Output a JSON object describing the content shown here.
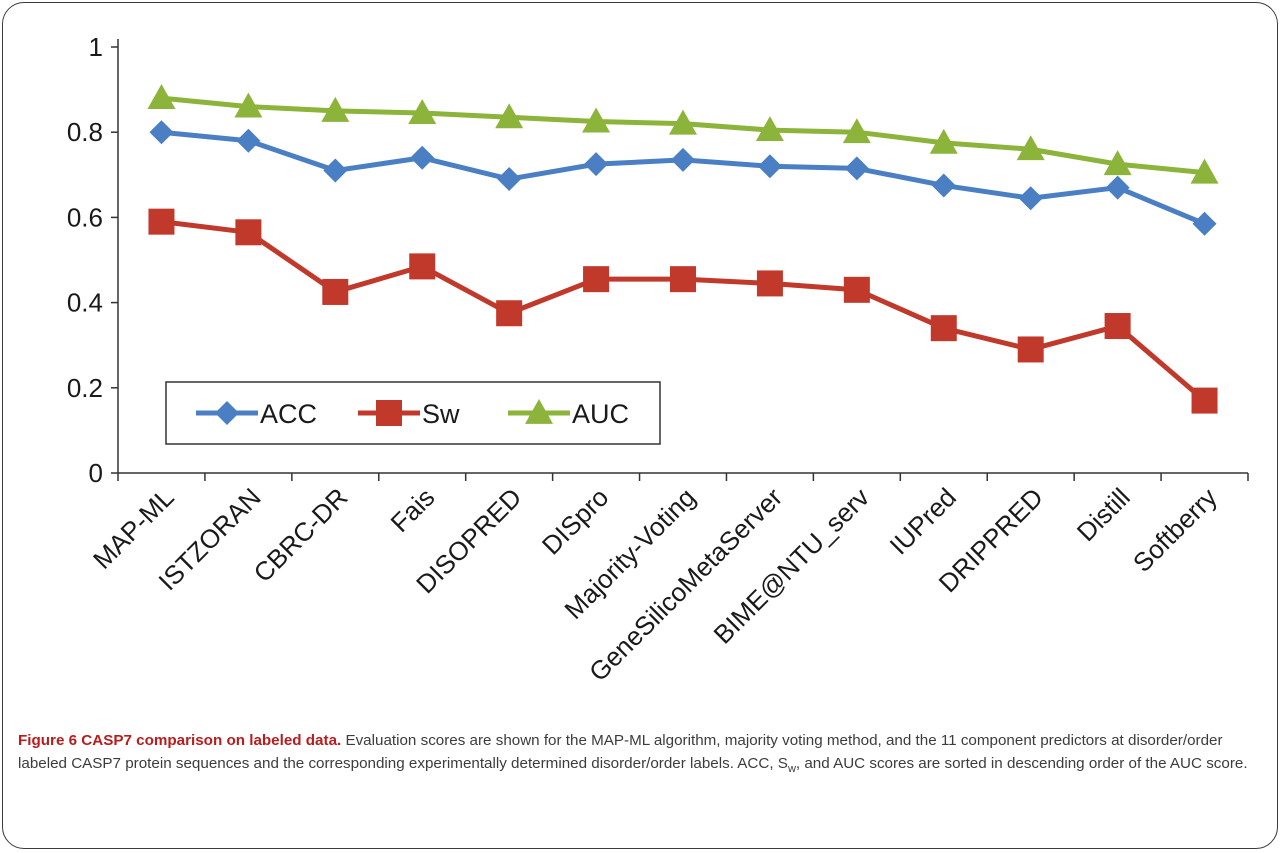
{
  "chart_data": {
    "type": "line",
    "categories": [
      "MAP-ML",
      "ISTZORAN",
      "CBRC-DR",
      "Fais",
      "DISOPRED",
      "DISpro",
      "Majority-Voting",
      "GeneSilicoMetaServer",
      "BIME@NTU_serv",
      "IUPred",
      "DRIPPRED",
      "Distill",
      "Softberry"
    ],
    "series": [
      {
        "name": "ACC",
        "color": "#4a7fc4",
        "marker": "diamond",
        "values": [
          0.8,
          0.78,
          0.71,
          0.74,
          0.69,
          0.725,
          0.735,
          0.72,
          0.715,
          0.675,
          0.645,
          0.67,
          0.585
        ]
      },
      {
        "name": "Sw",
        "color": "#c0392b",
        "marker": "square",
        "values": [
          0.59,
          0.565,
          0.425,
          0.485,
          0.375,
          0.455,
          0.455,
          0.445,
          0.43,
          0.34,
          0.29,
          0.345,
          0.17
        ]
      },
      {
        "name": "AUC",
        "color": "#8cb33a",
        "marker": "triangle",
        "values": [
          0.88,
          0.86,
          0.85,
          0.845,
          0.835,
          0.825,
          0.82,
          0.805,
          0.8,
          0.775,
          0.76,
          0.725,
          0.705
        ]
      }
    ],
    "yticks": [
      "0",
      "0.2",
      "0.4",
      "0.6",
      "0.8",
      "1"
    ],
    "ylim": [
      0,
      1
    ],
    "grid": false,
    "legend": "bottom-left"
  },
  "caption": {
    "label": "Figure 6 CASP7 comparison on labeled data.",
    "text_a": " Evaluation scores are shown for the MAP-ML algorithm, majority voting method, and the 11 component predictors at disorder/order labeled CASP7 protein sequences and the corresponding experimentally determined disorder/order labels. ACC, S",
    "sub": "w",
    "text_b": ", and AUC scores are sorted in descending order of the AUC score."
  }
}
